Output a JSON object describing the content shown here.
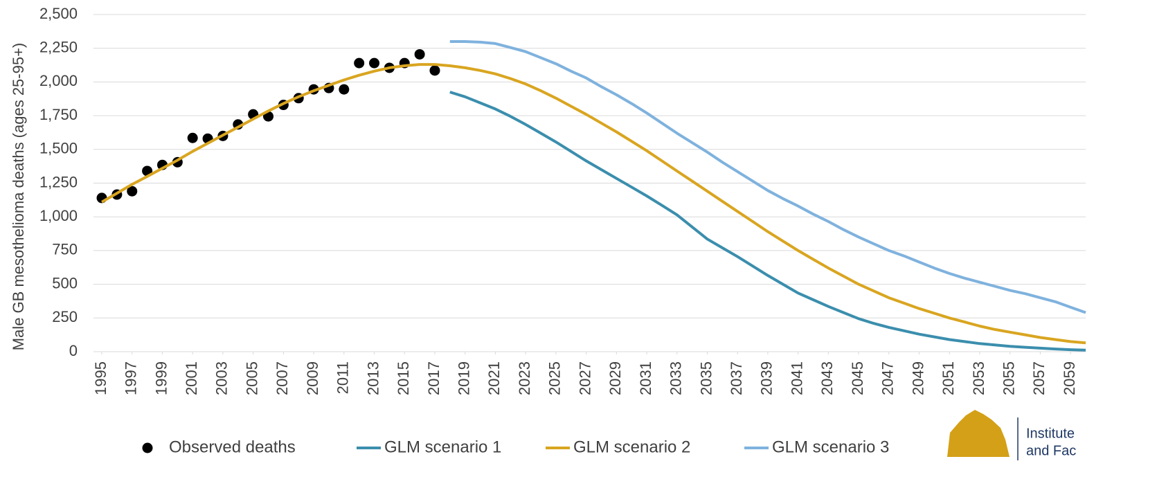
{
  "chart_data": {
    "type": "line",
    "y_label": "Male GB mesothelioma deaths (ages 25-95+)",
    "x": [
      1995,
      1996,
      1997,
      1998,
      1999,
      2000,
      2001,
      2002,
      2003,
      2004,
      2005,
      2006,
      2007,
      2008,
      2009,
      2010,
      2011,
      2012,
      2013,
      2014,
      2015,
      2016,
      2017,
      2018,
      2019,
      2020,
      2021,
      2022,
      2023,
      2024,
      2025,
      2026,
      2027,
      2028,
      2029,
      2030,
      2031,
      2032,
      2033,
      2034,
      2035,
      2036,
      2037,
      2038,
      2039,
      2040,
      2041,
      2042,
      2043,
      2044,
      2045,
      2046,
      2047,
      2048,
      2049,
      2050,
      2051,
      2052,
      2053,
      2054,
      2055,
      2056,
      2057,
      2058,
      2059,
      2060
    ],
    "series": [
      {
        "name": "Observed deaths",
        "color": "#000000",
        "style": "markers",
        "values": [
          1140,
          1165,
          1190,
          1340,
          1385,
          1405,
          1585,
          1580,
          1600,
          1685,
          1760,
          1745,
          1830,
          1880,
          1945,
          1955,
          1945,
          2140,
          2140,
          2105,
          2140,
          2205,
          2085,
          null,
          null,
          null,
          null,
          null,
          null,
          null,
          null,
          null,
          null,
          null,
          null,
          null,
          null,
          null,
          null,
          null,
          null,
          null,
          null,
          null,
          null,
          null,
          null,
          null,
          null,
          null,
          null,
          null,
          null,
          null,
          null,
          null,
          null,
          null,
          null,
          null,
          null,
          null,
          null,
          null,
          null,
          null
        ]
      },
      {
        "name": "GLM scenario 1",
        "color": "#3b8ead",
        "style": "line",
        "values": [
          null,
          null,
          null,
          null,
          null,
          null,
          null,
          null,
          null,
          null,
          null,
          null,
          null,
          null,
          null,
          null,
          null,
          null,
          null,
          null,
          null,
          null,
          null,
          1925,
          1890,
          1845,
          1800,
          1745,
          1685,
          1620,
          1555,
          1485,
          1415,
          1350,
          1285,
          1220,
          1155,
          1085,
          1015,
          925,
          835,
          770,
          705,
          635,
          565,
          500,
          435,
          385,
          335,
          290,
          245,
          210,
          180,
          155,
          130,
          110,
          90,
          75,
          60,
          50,
          40,
          33,
          26,
          20,
          15,
          12
        ]
      },
      {
        "name": "GLM scenario 2",
        "color": "#d9a520",
        "style": "line",
        "values": [
          1110,
          1175,
          1240,
          1300,
          1360,
          1420,
          1485,
          1545,
          1605,
          1665,
          1725,
          1785,
          1840,
          1890,
          1935,
          1975,
          2015,
          2050,
          2080,
          2105,
          2120,
          2130,
          2130,
          2120,
          2105,
          2085,
          2060,
          2025,
          1985,
          1935,
          1880,
          1820,
          1760,
          1695,
          1630,
          1560,
          1490,
          1415,
          1340,
          1265,
          1190,
          1115,
          1040,
          965,
          890,
          820,
          750,
          685,
          620,
          560,
          500,
          450,
          400,
          360,
          320,
          285,
          250,
          220,
          190,
          165,
          145,
          125,
          105,
          90,
          75,
          65
        ]
      },
      {
        "name": "GLM scenario 3",
        "color": "#7fb2de",
        "style": "line",
        "values": [
          null,
          null,
          null,
          null,
          null,
          null,
          null,
          null,
          null,
          null,
          null,
          null,
          null,
          null,
          null,
          null,
          null,
          null,
          null,
          null,
          null,
          null,
          null,
          2300,
          2300,
          2295,
          2285,
          2255,
          2225,
          2180,
          2135,
          2080,
          2030,
          1965,
          1905,
          1840,
          1770,
          1695,
          1620,
          1550,
          1480,
          1405,
          1335,
          1265,
          1195,
          1135,
          1080,
          1020,
          965,
          905,
          850,
          800,
          750,
          710,
          665,
          620,
          580,
          545,
          515,
          485,
          455,
          430,
          400,
          370,
          330,
          290
        ]
      }
    ],
    "xlim": [
      1994.45,
      2060
    ],
    "xticks": [
      1995,
      1997,
      1999,
      2001,
      2003,
      2005,
      2007,
      2009,
      2011,
      2013,
      2015,
      2017,
      2019,
      2021,
      2023,
      2025,
      2027,
      2029,
      2031,
      2033,
      2035,
      2037,
      2039,
      2041,
      2043,
      2045,
      2047,
      2049,
      2051,
      2053,
      2055,
      2057,
      2059
    ],
    "ylim": [
      0,
      2500
    ],
    "yticks": [
      0,
      250,
      500,
      750,
      {
        "value": 1000,
        "label": "1,000"
      },
      {
        "value": 1250,
        "label": "1,250"
      },
      {
        "value": 1500,
        "label": "1,500"
      },
      {
        "value": 1750,
        "label": "1,750"
      },
      {
        "value": 2000,
        "label": "2,000"
      },
      {
        "value": 2250,
        "label": "2,250"
      },
      {
        "value": 2500,
        "label": "2,500"
      }
    ],
    "grid": true,
    "legend": "bottom"
  },
  "logo": {
    "line1": "Institute",
    "line2": "and Fac"
  }
}
